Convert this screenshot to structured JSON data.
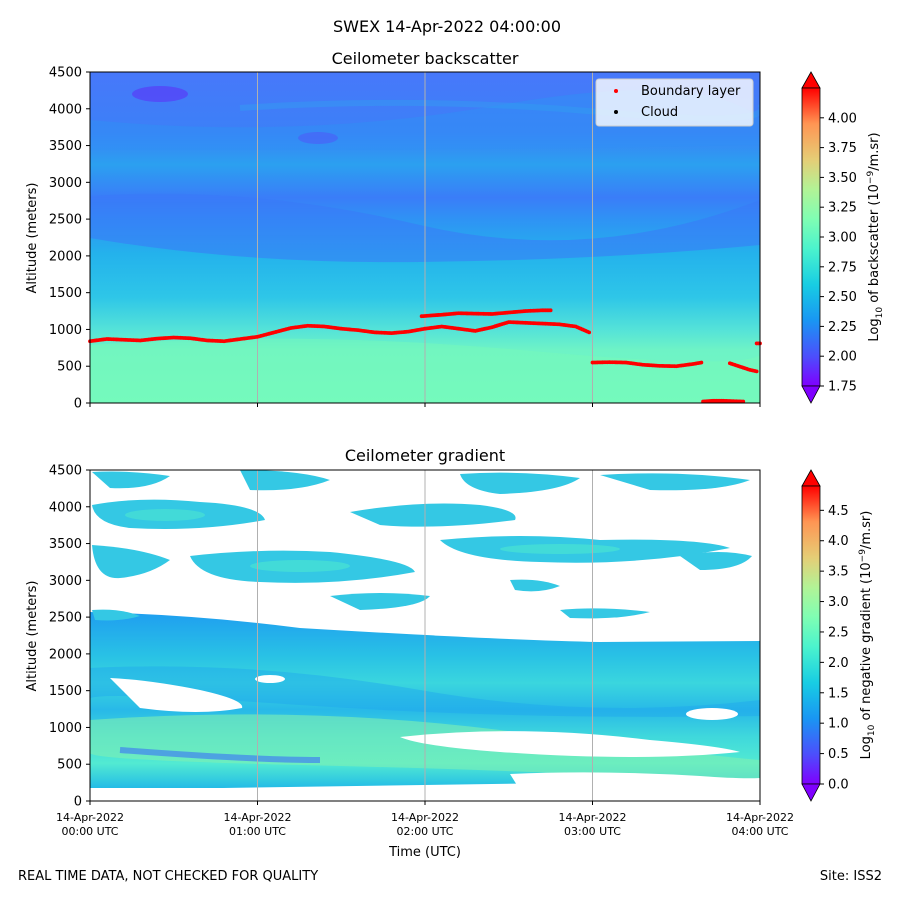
{
  "suptitle": "SWEX 14-Apr-2022 04:00:00",
  "footer": {
    "left": "REAL TIME DATA, NOT CHECKED FOR QUALITY",
    "right": "Site: ISS2"
  },
  "x_axis": {
    "label": "Time (UTC)",
    "range_hours": [
      0,
      4
    ],
    "ticks": [
      {
        "hour": 0,
        "line1": "14-Apr-2022",
        "line2": "00:00 UTC"
      },
      {
        "hour": 1,
        "line1": "14-Apr-2022",
        "line2": "01:00 UTC"
      },
      {
        "hour": 2,
        "line1": "14-Apr-2022",
        "line2": "02:00 UTC"
      },
      {
        "hour": 3,
        "line1": "14-Apr-2022",
        "line2": "03:00 UTC"
      },
      {
        "hour": 4,
        "line1": "14-Apr-2022",
        "line2": "04:00 UTC"
      }
    ]
  },
  "colors": {
    "red": "#ff0000",
    "black": "#000000",
    "grid": "#b0b0b0"
  },
  "chart_data": [
    {
      "type": "heatmap",
      "title": "Ceilometer backscatter",
      "ylabel": "Altitude (meters)",
      "ylim": [
        0,
        4500
      ],
      "yticks": [
        0,
        500,
        1000,
        1500,
        2000,
        2500,
        3000,
        3500,
        4000,
        4500
      ],
      "colorbar": {
        "label_pre": "Log",
        "label_sub": "10",
        "label_mid": " of backscatter (10",
        "label_sup": "−9",
        "label_post": "/m.sr)",
        "range": [
          1.75,
          4.25
        ],
        "ticks": [
          "1.75",
          "2.00",
          "2.25",
          "2.50",
          "2.75",
          "3.00",
          "3.25",
          "3.50",
          "3.75",
          "4.00"
        ]
      },
      "legend": {
        "position": "upper-right",
        "entries": [
          {
            "label": "Boundary layer",
            "color": "#ff0000"
          },
          {
            "label": "Cloud",
            "color": "#000000"
          }
        ]
      },
      "boundary_layer_series": [
        {
          "hours": [
            0.0,
            0.1,
            0.2,
            0.3,
            0.4,
            0.5,
            0.6,
            0.7,
            0.8,
            0.9,
            1.0,
            1.1,
            1.2,
            1.3,
            1.4,
            1.5,
            1.6,
            1.7,
            1.8,
            1.9,
            2.0,
            2.1,
            2.2,
            2.3,
            2.4,
            2.5,
            2.6,
            2.7,
            2.8,
            2.9,
            2.98
          ],
          "altitude_m": [
            840,
            870,
            860,
            850,
            875,
            890,
            880,
            850,
            840,
            870,
            900,
            960,
            1020,
            1050,
            1040,
            1010,
            990,
            960,
            950,
            970,
            1010,
            1040,
            1010,
            980,
            1030,
            1100,
            1090,
            1080,
            1070,
            1040,
            960
          ]
        },
        {
          "hours": [
            1.98,
            2.1,
            2.2,
            2.3,
            2.4,
            2.5,
            2.6,
            2.7,
            2.75
          ],
          "altitude_m": [
            1180,
            1200,
            1220,
            1215,
            1210,
            1230,
            1250,
            1260,
            1260
          ]
        },
        {
          "hours": [
            3.0,
            3.1,
            3.2,
            3.3,
            3.4,
            3.5,
            3.6,
            3.65
          ],
          "altitude_m": [
            550,
            555,
            550,
            520,
            505,
            500,
            530,
            550
          ]
        },
        {
          "hours": [
            3.82,
            3.86,
            3.9,
            3.94,
            3.98
          ],
          "altitude_m": [
            540,
            510,
            480,
            450,
            430
          ]
        },
        {
          "hours": [
            3.98,
            4.0
          ],
          "altitude_m": [
            810,
            810
          ]
        },
        {
          "hours": [
            3.66,
            3.72,
            3.78,
            3.84,
            3.9
          ],
          "altitude_m": [
            20,
            30,
            30,
            25,
            20
          ]
        }
      ]
    },
    {
      "type": "heatmap",
      "title": "Ceilometer gradient",
      "ylabel": "Altitude (meters)",
      "ylim": [
        0,
        4500
      ],
      "yticks": [
        0,
        500,
        1000,
        1500,
        2000,
        2500,
        3000,
        3500,
        4000,
        4500
      ],
      "colorbar": {
        "label_pre": "Log",
        "label_sub": "10",
        "label_mid": " of negative gradient (10",
        "label_sup": "−9",
        "label_post": "/m.sr)",
        "range": [
          0.0,
          4.9
        ],
        "ticks": [
          "0.0",
          "0.5",
          "1.0",
          "1.5",
          "2.0",
          "2.5",
          "3.0",
          "3.5",
          "4.0",
          "4.5"
        ]
      }
    }
  ]
}
